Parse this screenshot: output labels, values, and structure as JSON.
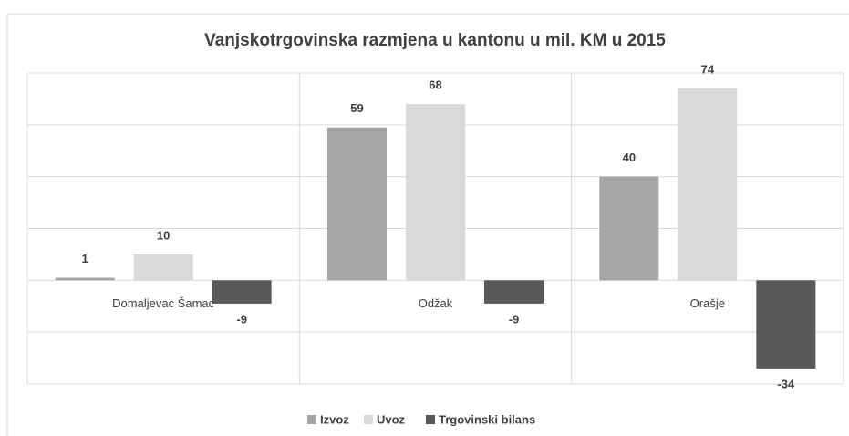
{
  "chart_data": {
    "type": "bar",
    "title": "Vanjskotrgovinska razmjena u kantonu u mil. KM u 2015",
    "categories": [
      "Domaljevac Šamac",
      "Odžak",
      "Orašje"
    ],
    "series": [
      {
        "name": "Izvoz",
        "color": "#a5a5a5",
        "values": [
          1,
          59,
          40
        ]
      },
      {
        "name": "Uvoz",
        "color": "#d9d9d9",
        "values": [
          10,
          68,
          74
        ]
      },
      {
        "name": "Trgovinski bilans",
        "color": "#595959",
        "values": [
          -9,
          -9,
          -34
        ]
      }
    ],
    "ylim": [
      -40,
      80
    ],
    "yticks": [
      -40,
      -20,
      0,
      20,
      40,
      60,
      80
    ],
    "grid": true,
    "legend": "bottom"
  }
}
